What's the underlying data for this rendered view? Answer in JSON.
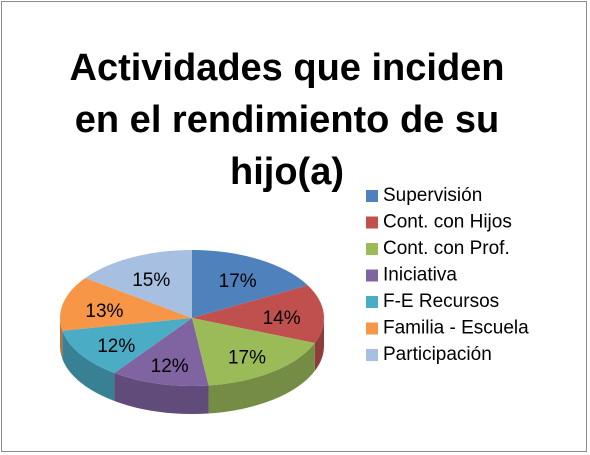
{
  "chart_data": {
    "type": "pie",
    "title": "Actividades que inciden en el rendimiento de su hijo(a)",
    "categories": [
      "Supervisión",
      "Cont. con Hijos",
      "Cont. con Prof.",
      "Iniciativa",
      "F-E Recursos",
      "Familia - Escuela",
      "Participación"
    ],
    "values": [
      17,
      14,
      17,
      12,
      12,
      13,
      15
    ],
    "value_labels": [
      "17%",
      "14%",
      "17%",
      "12%",
      "12%",
      "13%",
      "15%"
    ],
    "colors": [
      "#4f81bd",
      "#c0504d",
      "#9bbb59",
      "#8064a2",
      "#4bacc6",
      "#f79646",
      "#a7bfe0"
    ],
    "legend": "right"
  }
}
